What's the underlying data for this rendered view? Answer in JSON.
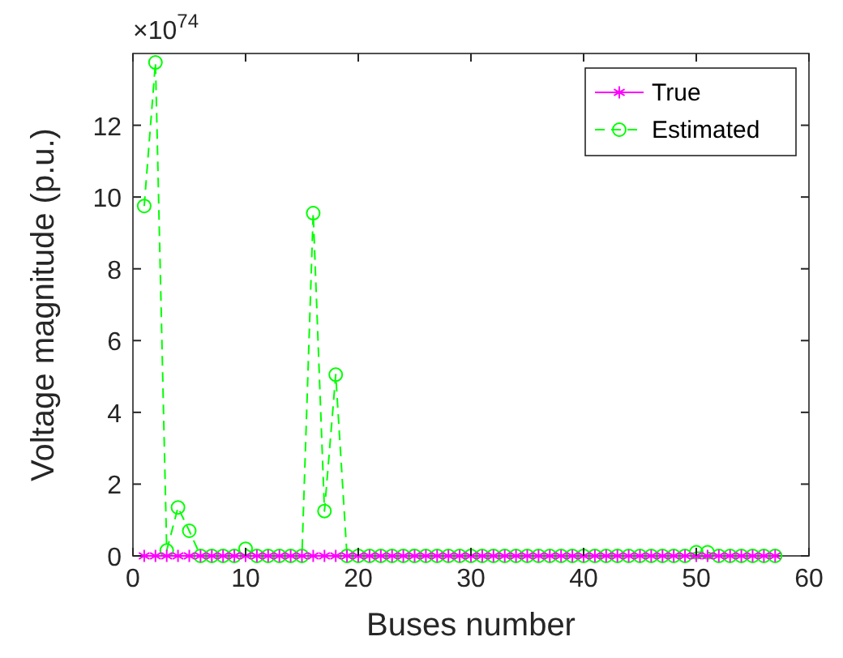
{
  "chart_data": {
    "type": "line",
    "xlabel": "Buses number",
    "ylabel": "Voltage magnitude (p.u.)",
    "annotations": [
      "×10$^{74}$"
    ],
    "x": [
      1,
      2,
      3,
      4,
      5,
      6,
      7,
      8,
      9,
      10,
      11,
      12,
      13,
      14,
      15,
      16,
      17,
      18,
      19,
      20,
      21,
      22,
      23,
      24,
      25,
      26,
      27,
      28,
      29,
      30,
      31,
      32,
      33,
      34,
      35,
      36,
      37,
      38,
      39,
      40,
      41,
      42,
      43,
      44,
      45,
      46,
      47,
      48,
      49,
      50,
      51,
      52,
      53,
      54,
      55,
      56,
      57
    ],
    "xlim": [
      0,
      60
    ],
    "xticks": [
      0,
      10,
      20,
      30,
      40,
      50,
      60
    ],
    "ylim": [
      0,
      14
    ],
    "yticks": [
      0,
      2,
      4,
      6,
      8,
      10,
      12
    ],
    "grid": false,
    "legend": "top right",
    "series": [
      {
        "name": "True",
        "color": "#ff00ff",
        "marker": "cross",
        "line_style": "solid",
        "values": [
          0,
          0,
          0,
          0,
          0,
          0,
          0,
          0,
          0,
          0,
          0,
          0,
          0,
          0,
          0,
          0,
          0,
          0,
          0,
          0,
          0,
          0,
          0,
          0,
          0,
          0,
          0,
          0,
          0,
          0,
          0,
          0,
          0,
          0,
          0,
          0,
          0,
          0,
          0,
          0,
          0,
          0,
          0,
          0,
          0,
          0,
          0,
          0,
          0,
          0,
          0,
          0,
          0,
          0,
          0,
          0,
          0
        ]
      },
      {
        "name": "Estimated",
        "color": "#00ff00",
        "marker": "circle",
        "line_style": "dashed",
        "values": [
          9.75,
          13.75,
          0.15,
          1.35,
          0.7,
          0,
          0,
          0,
          0,
          0.2,
          0,
          0,
          0,
          0,
          0,
          9.55,
          1.25,
          5.05,
          0,
          0,
          0,
          0,
          0,
          0,
          0,
          0,
          0,
          0,
          0,
          0,
          0,
          0,
          0,
          0,
          0,
          0,
          0,
          0,
          0,
          0,
          0,
          0,
          0,
          0,
          0,
          0,
          0,
          0,
          0,
          0.1,
          0.1,
          0,
          0,
          0,
          0,
          0,
          0
        ]
      }
    ]
  }
}
